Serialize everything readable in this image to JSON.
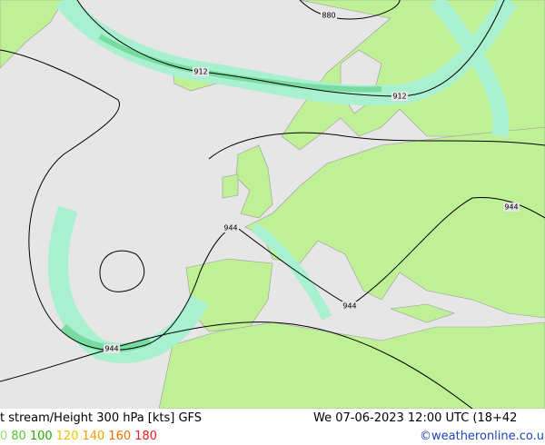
{
  "map": {
    "contour_labels": [
      "880",
      "912",
      "912",
      "944",
      "944",
      "944",
      "944"
    ]
  },
  "footer": {
    "title": "t stream/Height 300 hPa [kts] GFS",
    "datetime": "We 07-06-2023 12:00 UTC (18+42",
    "legend": [
      {
        "label": "0",
        "color": "#96dc6e"
      },
      {
        "label": "80",
        "color": "#50c832"
      },
      {
        "label": "100",
        "color": "#28a800"
      },
      {
        "label": "120",
        "color": "#e6c800"
      },
      {
        "label": "140",
        "color": "#f0a000"
      },
      {
        "label": "160",
        "color": "#f06e00"
      },
      {
        "label": "180",
        "color": "#f01e1e"
      }
    ],
    "credit": "©weatheronline.co.uk"
  }
}
